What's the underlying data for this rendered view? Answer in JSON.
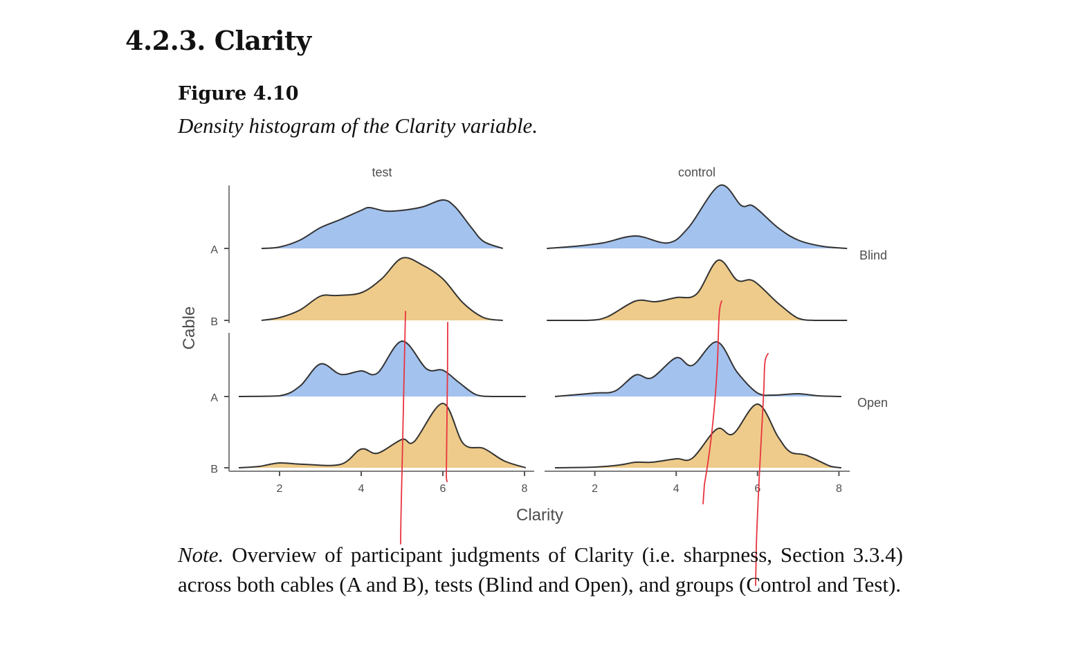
{
  "document": {
    "section_heading": "4.2.3. Clarity",
    "figure_label": "Figure 4.10",
    "figure_caption": "Density histogram of the Clarity variable.",
    "note_label": "Note.",
    "note_text": " Overview of participant judgments of Clarity (i.e. sharpness, Section 3.3.4) across both cables (A and B), tests (Blind and Open), and groups (Control and Test)."
  },
  "colors": {
    "cable_A": "#a3c2ee",
    "cable_B": "#eecb8a",
    "outline": "#333333",
    "axis": "#7f7f7f",
    "annotation": "#e8333f"
  },
  "chart_data": {
    "type": "area",
    "subtype": "ridgeline-density",
    "title": "",
    "xlabel": "Clarity",
    "ylabel": "Cable",
    "xlim": [
      1,
      8.2
    ],
    "x_ticks": [
      2,
      4,
      6,
      8
    ],
    "column_facets": [
      "test",
      "control"
    ],
    "row_facets": [
      "Blind",
      "Open"
    ],
    "y_categories": [
      "A",
      "B"
    ],
    "grid": false,
    "legend": "none",
    "series": [
      {
        "panel": "test",
        "test": "Blind",
        "cable": "A",
        "points": [
          [
            1.56,
            0
          ],
          [
            2.0,
            0.02
          ],
          [
            2.5,
            0.12
          ],
          [
            3.0,
            0.3
          ],
          [
            3.5,
            0.42
          ],
          [
            4.0,
            0.55
          ],
          [
            4.2,
            0.59
          ],
          [
            4.6,
            0.54
          ],
          [
            5.0,
            0.55
          ],
          [
            5.5,
            0.6
          ],
          [
            6.0,
            0.7
          ],
          [
            6.3,
            0.6
          ],
          [
            6.7,
            0.3
          ],
          [
            7.0,
            0.1
          ],
          [
            7.47,
            0
          ]
        ]
      },
      {
        "panel": "test",
        "test": "Blind",
        "cable": "B",
        "points": [
          [
            1.56,
            0
          ],
          [
            2.0,
            0.04
          ],
          [
            2.5,
            0.15
          ],
          [
            3.0,
            0.35
          ],
          [
            3.4,
            0.36
          ],
          [
            4.0,
            0.4
          ],
          [
            4.5,
            0.6
          ],
          [
            5.0,
            0.9
          ],
          [
            5.5,
            0.8
          ],
          [
            6.0,
            0.6
          ],
          [
            6.5,
            0.25
          ],
          [
            7.0,
            0.04
          ],
          [
            7.47,
            0
          ]
        ]
      },
      {
        "panel": "test",
        "test": "Open",
        "cable": "A",
        "points": [
          [
            1.0,
            0
          ],
          [
            2.0,
            0.01
          ],
          [
            2.5,
            0.15
          ],
          [
            3.0,
            0.47
          ],
          [
            3.5,
            0.32
          ],
          [
            4.0,
            0.37
          ],
          [
            4.4,
            0.34
          ],
          [
            5.0,
            0.8
          ],
          [
            5.6,
            0.4
          ],
          [
            6.0,
            0.38
          ],
          [
            6.4,
            0.2
          ],
          [
            6.8,
            0.03
          ],
          [
            7.2,
            0
          ],
          [
            8.03,
            0
          ]
        ]
      },
      {
        "panel": "test",
        "test": "Open",
        "cable": "B",
        "points": [
          [
            1.0,
            0
          ],
          [
            1.5,
            0.02
          ],
          [
            2.0,
            0.07
          ],
          [
            2.6,
            0.05
          ],
          [
            3.5,
            0.05
          ],
          [
            4.0,
            0.27
          ],
          [
            4.4,
            0.21
          ],
          [
            5.0,
            0.41
          ],
          [
            5.3,
            0.38
          ],
          [
            6.0,
            0.93
          ],
          [
            6.5,
            0.35
          ],
          [
            7.0,
            0.28
          ],
          [
            7.5,
            0.1
          ],
          [
            8.03,
            0
          ]
        ]
      },
      {
        "panel": "control",
        "test": "Blind",
        "cable": "A",
        "points": [
          [
            0.82,
            0
          ],
          [
            1.5,
            0.03
          ],
          [
            2.2,
            0.08
          ],
          [
            3.0,
            0.18
          ],
          [
            3.8,
            0.08
          ],
          [
            4.3,
            0.3
          ],
          [
            5.07,
            0.91
          ],
          [
            5.6,
            0.62
          ],
          [
            5.9,
            0.61
          ],
          [
            6.5,
            0.3
          ],
          [
            7.0,
            0.12
          ],
          [
            7.6,
            0.03
          ],
          [
            8.2,
            0
          ]
        ]
      },
      {
        "panel": "control",
        "test": "Blind",
        "cable": "B",
        "points": [
          [
            0.82,
            0
          ],
          [
            1.8,
            0
          ],
          [
            2.3,
            0.05
          ],
          [
            3.0,
            0.28
          ],
          [
            3.5,
            0.27
          ],
          [
            4.0,
            0.33
          ],
          [
            4.5,
            0.38
          ],
          [
            5.03,
            0.87
          ],
          [
            5.5,
            0.58
          ],
          [
            5.9,
            0.57
          ],
          [
            6.5,
            0.25
          ],
          [
            7.0,
            0.03
          ],
          [
            7.4,
            0
          ],
          [
            8.2,
            0
          ]
        ]
      },
      {
        "panel": "control",
        "test": "Open",
        "cable": "A",
        "points": [
          [
            1.02,
            0
          ],
          [
            2.0,
            0.05
          ],
          [
            2.5,
            0.08
          ],
          [
            3.0,
            0.31
          ],
          [
            3.4,
            0.27
          ],
          [
            4.0,
            0.56
          ],
          [
            4.4,
            0.45
          ],
          [
            5.0,
            0.79
          ],
          [
            5.5,
            0.35
          ],
          [
            6.0,
            0.05
          ],
          [
            6.4,
            0.02
          ],
          [
            7.0,
            0.04
          ],
          [
            7.5,
            0.01
          ],
          [
            8.06,
            0
          ]
        ]
      },
      {
        "panel": "control",
        "test": "Open",
        "cable": "B",
        "points": [
          [
            1.02,
            0
          ],
          [
            2.0,
            0.01
          ],
          [
            2.6,
            0.04
          ],
          [
            3.0,
            0.08
          ],
          [
            3.4,
            0.08
          ],
          [
            4.0,
            0.13
          ],
          [
            4.4,
            0.14
          ],
          [
            5.0,
            0.56
          ],
          [
            5.4,
            0.49
          ],
          [
            6.0,
            0.92
          ],
          [
            6.5,
            0.45
          ],
          [
            6.8,
            0.23
          ],
          [
            7.2,
            0.18
          ],
          [
            7.8,
            0.02
          ],
          [
            8.06,
            0
          ]
        ]
      }
    ]
  },
  "annotations": {
    "description": "hand-drawn red vertical marker lines",
    "test_markers_at_clarity": [
      5.0,
      6.0
    ],
    "control_markers_at_clarity": [
      5.0,
      6.0
    ]
  }
}
